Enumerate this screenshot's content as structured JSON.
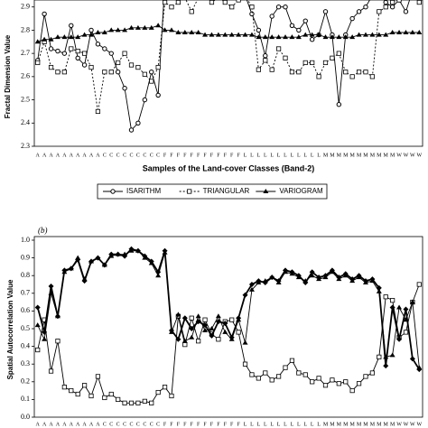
{
  "chart_data": [
    {
      "type": "line",
      "y_label": "Fractal Dimension Value",
      "x_label": "Samples of the Land-cover Classes (Band-2)",
      "categories": [
        "A",
        "A",
        "A",
        "A",
        "A",
        "A",
        "A",
        "A",
        "A",
        "A",
        "C",
        "C",
        "C",
        "C",
        "C",
        "C",
        "C",
        "C",
        "C",
        "F",
        "F",
        "F",
        "F",
        "F",
        "F",
        "F",
        "F",
        "F",
        "F",
        "F",
        "F",
        "L",
        "L",
        "L",
        "L",
        "L",
        "L",
        "L",
        "L",
        "L",
        "L",
        "L",
        "L",
        "M",
        "M",
        "M",
        "M",
        "M",
        "M",
        "M",
        "M",
        "M",
        "M",
        "M",
        "W",
        "W",
        "W",
        "W"
      ],
      "ylim": [
        2.3,
        3.0
      ],
      "yticks": [
        2.3,
        2.4,
        2.5,
        2.6,
        2.7,
        2.8,
        2.9
      ],
      "legend": "bottom",
      "series": [
        {
          "name": "ISARITHM",
          "color": "#000000",
          "marker": "circle",
          "dashed": false,
          "values": [
            2.67,
            2.87,
            2.72,
            2.71,
            2.7,
            2.82,
            2.68,
            2.65,
            2.8,
            2.74,
            2.72,
            2.7,
            2.62,
            2.55,
            2.37,
            2.4,
            2.5,
            2.62,
            2.52,
            3.0,
            2.97,
            3.0,
            2.98,
            3.0,
            2.99,
            3.0,
            2.97,
            3.0,
            2.98,
            2.99,
            2.97,
            2.95,
            2.87,
            2.8,
            2.69,
            2.86,
            2.9,
            2.9,
            2.82,
            2.8,
            2.84,
            2.76,
            2.78,
            2.88,
            2.78,
            2.48,
            2.78,
            2.85,
            2.88,
            2.9,
            2.95,
            2.98,
            2.92,
            2.9,
            2.93,
            2.88,
            2.97,
            3.0
          ]
        },
        {
          "name": "TRIANGULAR",
          "color": "#000000",
          "marker": "square",
          "dashed": true,
          "values": [
            2.66,
            2.75,
            2.64,
            2.62,
            2.62,
            2.72,
            2.71,
            2.7,
            2.64,
            2.45,
            2.62,
            2.62,
            2.66,
            2.7,
            2.65,
            2.64,
            2.61,
            2.58,
            2.64,
            2.92,
            2.9,
            2.92,
            2.94,
            2.88,
            2.94,
            2.95,
            2.92,
            2.94,
            2.92,
            2.9,
            2.93,
            2.95,
            2.9,
            2.63,
            2.67,
            2.63,
            2.72,
            2.68,
            2.62,
            2.62,
            2.66,
            2.66,
            2.6,
            2.66,
            2.68,
            2.7,
            2.62,
            2.6,
            2.62,
            2.62,
            2.6,
            2.88,
            2.9,
            2.92,
            2.93,
            2.95,
            2.97,
            2.92
          ]
        },
        {
          "name": "VARIOGRAM",
          "color": "#000000",
          "marker": "triangle",
          "dashed": false,
          "values": [
            2.75,
            2.76,
            2.76,
            2.77,
            2.77,
            2.77,
            2.77,
            2.78,
            2.78,
            2.79,
            2.79,
            2.8,
            2.8,
            2.8,
            2.81,
            2.81,
            2.81,
            2.81,
            2.82,
            2.8,
            2.8,
            2.79,
            2.79,
            2.79,
            2.79,
            2.78,
            2.78,
            2.78,
            2.78,
            2.78,
            2.78,
            2.78,
            2.78,
            2.77,
            2.77,
            2.77,
            2.77,
            2.77,
            2.77,
            2.77,
            2.78,
            2.78,
            2.78,
            2.77,
            2.77,
            2.77,
            2.77,
            2.77,
            2.78,
            2.78,
            2.78,
            2.78,
            2.78,
            2.79,
            2.79,
            2.79,
            2.79,
            2.79
          ]
        }
      ]
    },
    {
      "type": "line",
      "annotation": "(b)",
      "y_label": "Spatial Autocorrelation Value",
      "categories": [
        "A",
        "A",
        "A",
        "A",
        "A",
        "A",
        "A",
        "A",
        "A",
        "A",
        "C",
        "C",
        "C",
        "C",
        "C",
        "C",
        "C",
        "C",
        "C",
        "F",
        "F",
        "F",
        "F",
        "F",
        "F",
        "F",
        "F",
        "F",
        "F",
        "F",
        "F",
        "L",
        "L",
        "L",
        "L",
        "L",
        "L",
        "L",
        "L",
        "L",
        "L",
        "L",
        "L",
        "M",
        "M",
        "M",
        "M",
        "M",
        "M",
        "M",
        "M",
        "M",
        "M",
        "M",
        "W",
        "W",
        "W",
        "W"
      ],
      "ylim": [
        0,
        1.0
      ],
      "yticks": [
        {
          "value": 0,
          "label": "0.0"
        },
        {
          "value": 0.1,
          "label": "0.1"
        },
        {
          "value": 0.2,
          "label": "0.2"
        },
        {
          "value": 0.3,
          "label": "0.3"
        },
        {
          "value": 0.4,
          "label": "0.4"
        },
        {
          "value": 0.5,
          "label": "0.5"
        },
        {
          "value": 0.6,
          "label": "0.6"
        },
        {
          "value": 0.7,
          "label": "0.7"
        },
        {
          "value": 0.8,
          "label": "0.8"
        },
        {
          "value": 0.9,
          "label": "0.9"
        },
        {
          "value": 1.0,
          "label": "1.0"
        }
      ],
      "series": [
        {
          "color": "#000000",
          "marker": "square",
          "dashed": false,
          "values": [
            0.38,
            0.55,
            0.26,
            0.43,
            0.17,
            0.15,
            0.13,
            0.18,
            0.12,
            0.23,
            0.11,
            0.13,
            0.1,
            0.08,
            0.08,
            0.08,
            0.09,
            0.08,
            0.14,
            0.17,
            0.12,
            0.57,
            0.41,
            0.56,
            0.43,
            0.55,
            0.47,
            0.44,
            0.54,
            0.55,
            0.48,
            0.3,
            0.24,
            0.22,
            0.25,
            0.21,
            0.23,
            0.28,
            0.32,
            0.25,
            0.24,
            0.2,
            0.22,
            0.18,
            0.21,
            0.19,
            0.2,
            0.15,
            0.19,
            0.23,
            0.25,
            0.34,
            0.68,
            0.66,
            0.45,
            0.48,
            0.65,
            0.75
          ]
        },
        {
          "color": "#000000",
          "marker": "triangle",
          "dashed": false,
          "values": [
            0.52,
            0.44,
            0.7,
            0.57,
            0.82,
            0.84,
            0.9,
            0.78,
            0.88,
            0.9,
            0.86,
            0.91,
            0.92,
            0.92,
            0.94,
            0.94,
            0.9,
            0.87,
            0.8,
            0.93,
            0.48,
            0.58,
            0.43,
            0.45,
            0.57,
            0.49,
            0.5,
            0.57,
            0.48,
            0.44,
            0.55,
            0.42,
            0.72,
            0.76,
            0.77,
            0.79,
            0.76,
            0.82,
            0.81,
            0.79,
            0.77,
            0.8,
            0.78,
            0.79,
            0.82,
            0.78,
            0.8,
            0.77,
            0.79,
            0.76,
            0.77,
            0.71,
            0.34,
            0.35,
            0.62,
            0.55,
            0.65,
            0.28
          ]
        },
        {
          "color": "#000000",
          "marker": "diamond",
          "dashed": false,
          "bold": true,
          "values": [
            0.62,
            0.48,
            0.74,
            0.57,
            0.83,
            0.84,
            0.89,
            0.77,
            0.88,
            0.9,
            0.86,
            0.92,
            0.92,
            0.91,
            0.95,
            0.94,
            0.91,
            0.88,
            0.82,
            0.94,
            0.49,
            0.44,
            0.56,
            0.5,
            0.54,
            0.52,
            0.46,
            0.54,
            0.53,
            0.45,
            0.56,
            0.69,
            0.75,
            0.77,
            0.76,
            0.79,
            0.77,
            0.83,
            0.82,
            0.8,
            0.76,
            0.82,
            0.79,
            0.8,
            0.83,
            0.79,
            0.81,
            0.78,
            0.8,
            0.77,
            0.78,
            0.73,
            0.29,
            0.62,
            0.44,
            0.61,
            0.33,
            0.27
          ]
        }
      ]
    }
  ]
}
